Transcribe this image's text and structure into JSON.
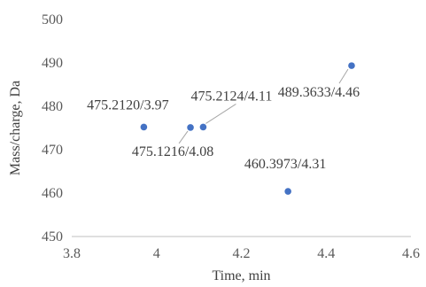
{
  "chart_data": {
    "type": "scatter",
    "xlabel": "Time, min",
    "ylabel": "Mass/charge, Da",
    "xlim": [
      3.8,
      4.6
    ],
    "ylim": [
      450,
      500
    ],
    "xticks": [
      3.8,
      4.0,
      4.2,
      4.4,
      4.6
    ],
    "xtick_labels": [
      "3.8",
      "4",
      "4.2",
      "4.4",
      "4.6"
    ],
    "yticks": [
      450,
      460,
      470,
      480,
      490,
      500
    ],
    "ytick_labels": [
      "450",
      "460",
      "470",
      "480",
      "490",
      "500"
    ],
    "grid": false,
    "legend": false,
    "marker_color": "#4472c4",
    "points": [
      {
        "x": 3.97,
        "y": 475.212,
        "label": "475.2120/3.97"
      },
      {
        "x": 4.08,
        "y": 475.1216,
        "label": "475.1216/4.08"
      },
      {
        "x": 4.11,
        "y": 475.2124,
        "label": "475.2124/4.11"
      },
      {
        "x": 4.31,
        "y": 460.3973,
        "label": "460.3973/4.31"
      },
      {
        "x": 4.46,
        "y": 489.3633,
        "label": "489.3633/4.46"
      }
    ]
  }
}
